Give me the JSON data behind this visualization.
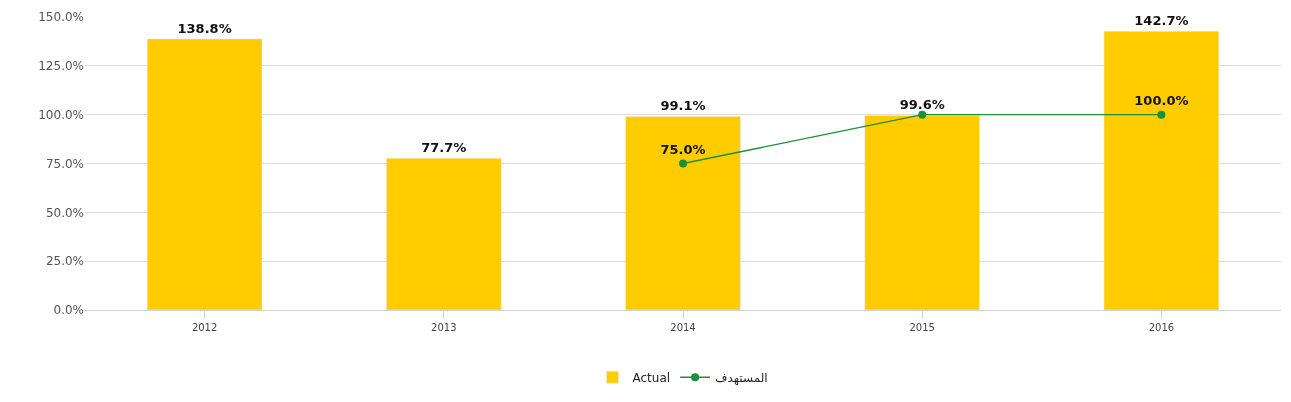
{
  "chart_data": {
    "type": "bar",
    "categories": [
      "2012",
      "2013",
      "2014",
      "2015",
      "2016"
    ],
    "series": [
      {
        "name": "Actual",
        "color": "#ffcc00",
        "values": [
          138.8,
          77.7,
          99.1,
          99.6,
          142.7
        ],
        "value_labels": [
          "138.8%",
          "77.7%",
          "99.1%",
          "99.6%",
          "142.7%"
        ]
      },
      {
        "name": "المستهدف",
        "type": "line",
        "color": "#1a8f3c",
        "values": [
          null,
          null,
          75,
          100,
          100
        ],
        "value_labels": [
          null,
          null,
          "75.0%",
          null,
          "100.0%"
        ],
        "marker": "circle"
      }
    ],
    "ylim": [
      0,
      150
    ],
    "yticks": [
      {
        "value": 0,
        "label": "0.0%"
      },
      {
        "value": 25,
        "label": "25.0%"
      },
      {
        "value": 50,
        "label": "50.0%"
      },
      {
        "value": 75,
        "label": "75.0%"
      },
      {
        "value": 100,
        "label": "100.0%"
      },
      {
        "value": 125,
        "label": "125.0%"
      },
      {
        "value": 150,
        "label": "150.0%"
      }
    ],
    "grid": "y",
    "legend": "bottom"
  }
}
